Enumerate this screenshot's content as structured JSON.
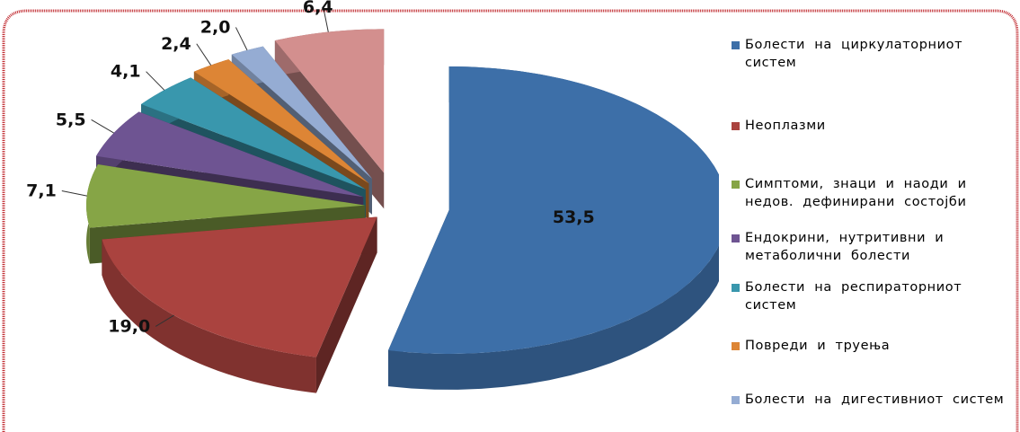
{
  "chart_data": {
    "type": "pie",
    "title": "",
    "slices": [
      {
        "label": "Болести на циркулаторниот систем",
        "value": 53.5,
        "display": "53,5",
        "color": "#3d6fa8"
      },
      {
        "label": "Неоплазми",
        "value": 19.0,
        "display": "19,0",
        "color": "#aa433f"
      },
      {
        "label": "Симптоми, знаци и наоди и недов. дефинирани состојби",
        "value": 7.1,
        "display": "7,1",
        "color": "#86a546"
      },
      {
        "label": "Ендокрини, нутритивни и метаболични болести",
        "value": 5.5,
        "display": "5,5",
        "color": "#6e5492"
      },
      {
        "label": "Болести на респираторниот систем",
        "value": 4.1,
        "display": "4,1",
        "color": "#3997ad"
      },
      {
        "label": "Повреди и труења",
        "value": 2.4,
        "display": "2,4",
        "color": "#dd8535"
      },
      {
        "label": "Болести на дигестивниот систем",
        "value": 2.0,
        "display": "2,0",
        "color": "#95acd3"
      },
      {
        "label": "",
        "value": 6.4,
        "display": "6,4",
        "color": "#d38f8e"
      }
    ],
    "legend_position": "right",
    "style": "3d-exploded"
  },
  "frame": {
    "border_color": "#c0282e"
  }
}
